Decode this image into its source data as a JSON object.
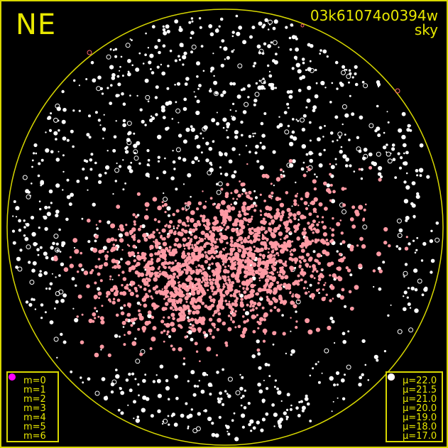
{
  "direction_label": "NE",
  "identifier": "03k61074o0394w",
  "subtitle": "sky",
  "frame_color": "#d8d800",
  "magnitude_legend": {
    "symbol_color": "#ff00ff",
    "items": [
      {
        "label": "m=0",
        "style": "ring"
      },
      {
        "label": "m=1",
        "size": 5
      },
      {
        "label": "m=2",
        "size": 4.5
      },
      {
        "label": "m=3",
        "size": 4
      },
      {
        "label": "m=4",
        "size": 3
      },
      {
        "label": "m=5",
        "size": 2.5
      },
      {
        "label": "m=6",
        "size": 1.5
      }
    ]
  },
  "mu_legend": {
    "items": [
      {
        "label": "μ=22.0",
        "color": "#1e5cff"
      },
      {
        "label": "μ=21.5",
        "color": "#18e060"
      },
      {
        "label": "μ=21.0",
        "color": "#ffd800"
      },
      {
        "label": "μ=20.0",
        "color": "#ff5a10"
      },
      {
        "label": "μ=19.0",
        "color": "#ff6070"
      },
      {
        "label": "μ=18.0",
        "color": "#ffb0c0"
      },
      {
        "label": "μ=17.0",
        "color": "#ffffff"
      }
    ]
  },
  "star_colors": {
    "bright_sky": "#ffffff",
    "mu_18": "#ff9aa4"
  }
}
